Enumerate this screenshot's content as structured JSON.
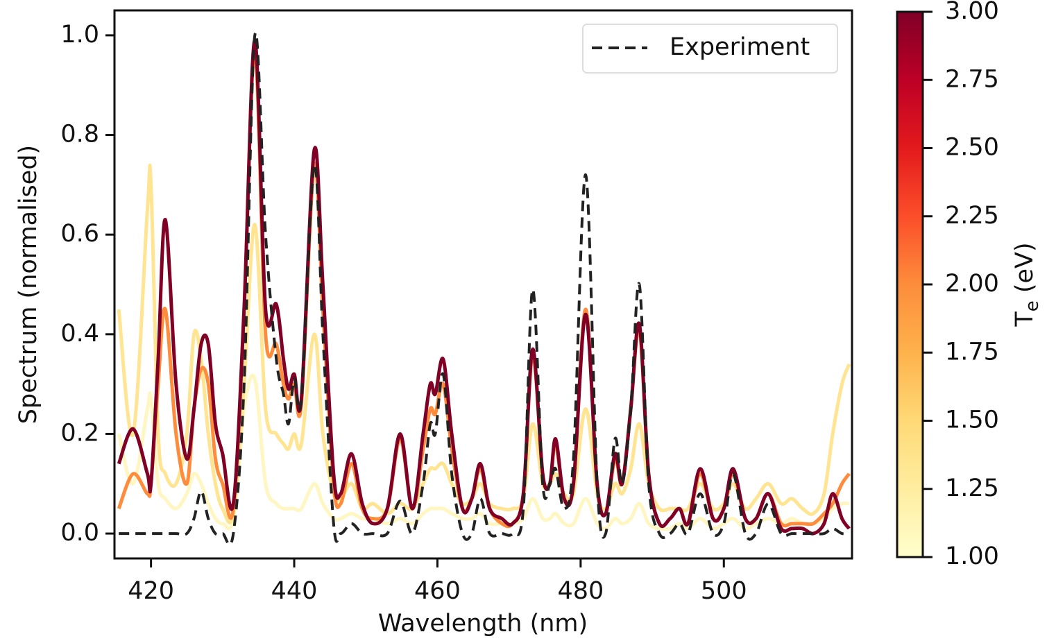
{
  "chart_data": {
    "type": "line",
    "xlabel": "Wavelength (nm)",
    "ylabel": "Spectrum (normalised)",
    "xlim": [
      414.9,
      517.9
    ],
    "ylim": [
      -0.05,
      1.05
    ],
    "xticks": [
      420,
      440,
      460,
      480,
      500
    ],
    "yticks": [
      {
        "value": 0,
        "label": "0.0"
      },
      {
        "value": 0.2,
        "label": "0.2"
      },
      {
        "value": 0.4,
        "label": "0.4"
      },
      {
        "value": 0.6,
        "label": "0.6"
      },
      {
        "value": 0.8,
        "label": "0.8"
      },
      {
        "value": 1,
        "label": "1.0"
      }
    ],
    "legend": "upper right",
    "x": [
      415.5,
      417.5,
      419.5,
      420,
      421,
      422,
      423.5,
      425,
      426,
      427,
      428,
      429,
      430,
      431.5,
      433,
      434.5,
      436,
      437.5,
      438.5,
      439.2,
      440,
      441,
      442.8,
      444,
      445.5,
      446.5,
      448,
      449.5,
      451,
      453,
      454.8,
      456.5,
      458,
      459,
      459.7,
      460.8,
      462,
      463.5,
      464.8,
      466,
      467.3,
      469,
      470.5,
      472,
      473.3,
      474.7,
      475.7,
      476.5,
      477.7,
      479,
      480.7,
      482.3,
      483.5,
      484.8,
      485.8,
      487,
      488.2,
      489.5,
      491,
      492.5,
      493.8,
      495,
      496.7,
      498.5,
      500,
      501.3,
      503,
      504.5,
      506.2,
      508,
      509.5,
      511,
      512.5,
      514,
      515.2,
      516.5,
      517.5
    ],
    "series": [
      {
        "color": "#fff6c2",
        "values": [
          0.2,
          0.1,
          0.25,
          0.27,
          0.1,
          0.07,
          0.05,
          0.08,
          0.12,
          0.1,
          0.06,
          0.03,
          0.02,
          0.03,
          0.25,
          0.31,
          0.1,
          0.06,
          0.05,
          0.05,
          0.05,
          0.05,
          0.1,
          0.06,
          0.03,
          0.03,
          0.04,
          0.03,
          0.03,
          0.02,
          0.03,
          0.02,
          0.04,
          0.05,
          0.05,
          0.05,
          0.04,
          0.03,
          0.03,
          0.04,
          0.02,
          0.02,
          0.02,
          0.03,
          0.07,
          0.03,
          0.03,
          0.04,
          0.02,
          0.02,
          0.07,
          0.02,
          0.01,
          0.03,
          0.02,
          0.03,
          0.06,
          0.02,
          0.01,
          0.01,
          0.02,
          0.01,
          0.03,
          0.01,
          0.02,
          0.03,
          0.01,
          0.02,
          0.03,
          0.02,
          0.03,
          0.02,
          0.02,
          0.03,
          0.05,
          0.06,
          0.06
        ]
      },
      {
        "color": "#ffe491",
        "values": [
          0.45,
          0.2,
          0.65,
          0.7,
          0.2,
          0.12,
          0.1,
          0.2,
          0.4,
          0.35,
          0.2,
          0.1,
          0.05,
          0.04,
          0.3,
          0.62,
          0.25,
          0.2,
          0.18,
          0.17,
          0.2,
          0.18,
          0.4,
          0.2,
          0.08,
          0.07,
          0.1,
          0.05,
          0.06,
          0.04,
          0.06,
          0.05,
          0.1,
          0.13,
          0.13,
          0.14,
          0.1,
          0.06,
          0.07,
          0.1,
          0.06,
          0.05,
          0.05,
          0.07,
          0.22,
          0.1,
          0.1,
          0.12,
          0.08,
          0.08,
          0.25,
          0.08,
          0.05,
          0.1,
          0.08,
          0.13,
          0.22,
          0.1,
          0.05,
          0.05,
          0.05,
          0.05,
          0.1,
          0.05,
          0.06,
          0.1,
          0.05,
          0.07,
          0.1,
          0.06,
          0.07,
          0.05,
          0.04,
          0.08,
          0.2,
          0.3,
          0.34
        ]
      },
      {
        "color": "#fd8d3c",
        "values": [
          0.05,
          0.12,
          0.08,
          0.1,
          0.3,
          0.45,
          0.2,
          0.1,
          0.25,
          0.33,
          0.3,
          0.15,
          0.1,
          0.05,
          0.45,
          0.97,
          0.4,
          0.38,
          0.3,
          0.27,
          0.3,
          0.26,
          0.74,
          0.45,
          0.1,
          0.06,
          0.14,
          0.05,
          0.03,
          0.05,
          0.19,
          0.05,
          0.17,
          0.25,
          0.24,
          0.3,
          0.17,
          0.05,
          0.07,
          0.13,
          0.05,
          0.02,
          0.02,
          0.08,
          0.36,
          0.12,
          0.1,
          0.18,
          0.07,
          0.1,
          0.45,
          0.1,
          0.04,
          0.15,
          0.1,
          0.25,
          0.41,
          0.12,
          0.02,
          0.03,
          0.05,
          0.02,
          0.12,
          0.03,
          0.05,
          0.12,
          0.03,
          0.03,
          0.08,
          0.02,
          0.02,
          0.02,
          0.02,
          0.04,
          0.06,
          0.1,
          0.12
        ]
      },
      {
        "color": "#800026",
        "values": [
          0.14,
          0.21,
          0.12,
          0.1,
          0.35,
          0.63,
          0.3,
          0.15,
          0.25,
          0.38,
          0.38,
          0.22,
          0.16,
          0.06,
          0.45,
          0.99,
          0.45,
          0.46,
          0.35,
          0.29,
          0.32,
          0.27,
          0.77,
          0.5,
          0.12,
          0.08,
          0.16,
          0.06,
          0.02,
          0.05,
          0.2,
          0.05,
          0.2,
          0.3,
          0.28,
          0.35,
          0.2,
          0.05,
          0.07,
          0.14,
          0.05,
          0.03,
          0.02,
          0.08,
          0.37,
          0.12,
          0.1,
          0.19,
          0.07,
          0.1,
          0.44,
          0.1,
          0.04,
          0.16,
          0.1,
          0.25,
          0.42,
          0.12,
          0.02,
          0.03,
          0.05,
          0.02,
          0.13,
          0.03,
          0.05,
          0.13,
          0.03,
          0.03,
          0.08,
          0.01,
          0.01,
          0.01,
          0,
          0.02,
          0.08,
          0.03,
          0.01
        ]
      },
      {
        "name": "Experiment",
        "color": "#222222",
        "dashed": true,
        "values": [
          0,
          0,
          0,
          0,
          0,
          0,
          0,
          0,
          0.03,
          0.085,
          0.03,
          0,
          0,
          0,
          0.3,
          1.0,
          0.6,
          0.35,
          0.28,
          0.22,
          0.31,
          0.27,
          0.74,
          0.4,
          0.02,
          0,
          0.02,
          0,
          0,
          0,
          0.065,
          0,
          0.1,
          0.22,
          0.2,
          0.32,
          0.12,
          0,
          0,
          0.07,
          0,
          0,
          0,
          0.05,
          0.49,
          0.1,
          0.1,
          0.13,
          0.05,
          0.15,
          0.72,
          0.1,
          0,
          0.19,
          0.1,
          0.25,
          0.5,
          0.1,
          0,
          0,
          0.02,
          0,
          0.08,
          0,
          0.02,
          0.12,
          0,
          0,
          0.06,
          0,
          0,
          0,
          0,
          0,
          0.01,
          0,
          0
        ]
      }
    ],
    "colorbar": {
      "label": [
        "T",
        "e",
        " (eV)"
      ],
      "lim": [
        1,
        3
      ],
      "colormap": [
        "#ffffcc",
        "#ffeda0",
        "#fed976",
        "#feb24c",
        "#fd8d3c",
        "#fc4e2a",
        "#e31a1c",
        "#bd0026",
        "#800026"
      ],
      "ticks": [
        {
          "value": 1,
          "label": "1.00"
        },
        {
          "value": 1.25,
          "label": "1.25"
        },
        {
          "value": 1.5,
          "label": "1.50"
        },
        {
          "value": 1.75,
          "label": "1.75"
        },
        {
          "value": 2,
          "label": "2.00"
        },
        {
          "value": 2.25,
          "label": "2.25"
        },
        {
          "value": 2.5,
          "label": "2.50"
        },
        {
          "value": 2.75,
          "label": "2.75"
        },
        {
          "value": 3,
          "label": "3.00"
        }
      ]
    }
  }
}
